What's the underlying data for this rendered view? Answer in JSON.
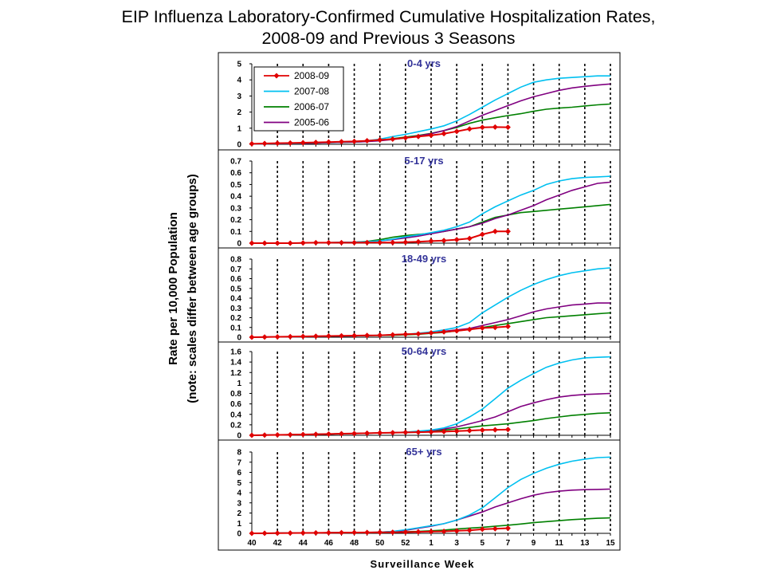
{
  "title_line1": "EIP Influenza Laboratory-Confirmed Cumulative Hospitalization Rates,",
  "title_line2": "2008-09 and Previous 3 Seasons",
  "colors": {
    "2008-09": "#e00000",
    "2007-08": "#00c0f0",
    "2006-07": "#008000",
    "2005-06": "#800080"
  },
  "chart_data": {
    "type": "line",
    "title": "EIP Influenza Laboratory-Confirmed Cumulative Hospitalization Rates, 2008-09 and Previous 3 Seasons",
    "xlabel": "Surveillance Week",
    "ylabel_line1": "Rate per 10,000 Population",
    "ylabel_line2": "(note: scales differ between age groups)",
    "legend_position": "top-left",
    "weeks": [
      40,
      41,
      42,
      43,
      44,
      45,
      46,
      47,
      48,
      49,
      50,
      51,
      52,
      1,
      2,
      3,
      4,
      5,
      6,
      7,
      8,
      9,
      10,
      11,
      12,
      13,
      14,
      15,
      16
    ],
    "x_tick_labels": [
      "40",
      "42",
      "44",
      "46",
      "48",
      "50",
      "52",
      "1",
      "3",
      "5",
      "7",
      "9",
      "11",
      "13",
      "15"
    ],
    "gridlines": "vertical dashed",
    "legend": [
      "2008-09",
      "2007-08",
      "2006-07",
      "2005-06"
    ],
    "panels": [
      {
        "label": "0-4 yrs",
        "ylim": [
          0,
          5
        ],
        "yticks": [
          "0",
          "1",
          "2",
          "3",
          "4",
          "5"
        ],
        "series": [
          {
            "name": "2008-09",
            "values": [
              0.03,
              0.05,
              0.07,
              0.08,
              0.1,
              0.12,
              0.14,
              0.16,
              0.18,
              0.22,
              0.27,
              0.32,
              0.4,
              0.48,
              0.56,
              0.66,
              0.8,
              0.95,
              1.05,
              1.07,
              1.06
            ]
          },
          {
            "name": "2007-08",
            "values": [
              0.02,
              0.03,
              0.05,
              0.06,
              0.08,
              0.1,
              0.12,
              0.14,
              0.17,
              0.22,
              0.32,
              0.48,
              0.62,
              0.78,
              0.95,
              1.15,
              1.45,
              1.85,
              2.3,
              2.75,
              3.15,
              3.55,
              3.85,
              4.0,
              4.1,
              4.15,
              4.2,
              4.25,
              4.25
            ]
          },
          {
            "name": "2006-07",
            "values": [
              0.02,
              0.03,
              0.04,
              0.05,
              0.06,
              0.08,
              0.1,
              0.12,
              0.14,
              0.18,
              0.25,
              0.35,
              0.45,
              0.55,
              0.68,
              0.85,
              1.05,
              1.3,
              1.5,
              1.65,
              1.78,
              1.9,
              2.05,
              2.18,
              2.25,
              2.3,
              2.38,
              2.45,
              2.5
            ]
          },
          {
            "name": "2005-06",
            "values": [
              0.02,
              0.03,
              0.04,
              0.05,
              0.06,
              0.08,
              0.1,
              0.12,
              0.14,
              0.17,
              0.22,
              0.3,
              0.4,
              0.52,
              0.66,
              0.85,
              1.1,
              1.45,
              1.8,
              2.1,
              2.4,
              2.7,
              2.95,
              3.15,
              3.35,
              3.5,
              3.6,
              3.68,
              3.75
            ]
          }
        ]
      },
      {
        "label": "5-17 yrs",
        "ylim": [
          0,
          0.7
        ],
        "yticks": [
          "0",
          "0.1",
          "0.2",
          "0.3",
          "0.4",
          "0.5",
          "0.6",
          "0.7"
        ],
        "series": [
          {
            "name": "2008-09",
            "values": [
              0.0,
              0.0,
              0.0,
              0.0,
              0.002,
              0.004,
              0.004,
              0.004,
              0.004,
              0.005,
              0.005,
              0.005,
              0.008,
              0.012,
              0.018,
              0.022,
              0.03,
              0.04,
              0.075,
              0.1,
              0.1
            ]
          },
          {
            "name": "2007-08",
            "values": [
              0.0,
              0.0,
              0.0,
              0.0,
              0.002,
              0.004,
              0.005,
              0.006,
              0.008,
              0.012,
              0.02,
              0.035,
              0.055,
              0.07,
              0.09,
              0.11,
              0.14,
              0.18,
              0.25,
              0.31,
              0.36,
              0.41,
              0.45,
              0.5,
              0.53,
              0.55,
              0.56,
              0.565,
              0.57
            ]
          },
          {
            "name": "2006-07",
            "values": [
              0.0,
              0.0,
              0.0,
              0.0,
              0.002,
              0.004,
              0.005,
              0.006,
              0.008,
              0.015,
              0.03,
              0.05,
              0.065,
              0.075,
              0.085,
              0.1,
              0.12,
              0.14,
              0.18,
              0.22,
              0.24,
              0.26,
              0.27,
              0.28,
              0.29,
              0.3,
              0.31,
              0.32,
              0.33
            ]
          },
          {
            "name": "2005-06",
            "values": [
              0.0,
              0.0,
              0.0,
              0.0,
              0.002,
              0.004,
              0.005,
              0.006,
              0.008,
              0.012,
              0.02,
              0.03,
              0.045,
              0.06,
              0.08,
              0.1,
              0.12,
              0.14,
              0.17,
              0.21,
              0.24,
              0.28,
              0.32,
              0.37,
              0.41,
              0.45,
              0.48,
              0.51,
              0.52
            ]
          }
        ]
      },
      {
        "label": "18-49 yrs",
        "ylim": [
          0,
          0.8
        ],
        "yticks": [
          "0",
          "0.1",
          "0.2",
          "0.3",
          "0.4",
          "0.5",
          "0.6",
          "0.7",
          "0.8"
        ],
        "series": [
          {
            "name": "2008-09",
            "values": [
              0.0,
              0.002,
              0.004,
              0.006,
              0.008,
              0.01,
              0.012,
              0.014,
              0.016,
              0.018,
              0.02,
              0.025,
              0.03,
              0.035,
              0.045,
              0.055,
              0.065,
              0.08,
              0.095,
              0.1,
              0.11
            ]
          },
          {
            "name": "2007-08",
            "values": [
              0.0,
              0.002,
              0.004,
              0.005,
              0.006,
              0.008,
              0.01,
              0.012,
              0.014,
              0.016,
              0.02,
              0.025,
              0.03,
              0.04,
              0.055,
              0.075,
              0.1,
              0.15,
              0.25,
              0.33,
              0.41,
              0.48,
              0.54,
              0.59,
              0.63,
              0.66,
              0.68,
              0.7,
              0.71
            ]
          },
          {
            "name": "2006-07",
            "values": [
              0.0,
              0.002,
              0.004,
              0.005,
              0.006,
              0.008,
              0.01,
              0.012,
              0.014,
              0.016,
              0.018,
              0.02,
              0.025,
              0.03,
              0.04,
              0.05,
              0.065,
              0.08,
              0.1,
              0.12,
              0.14,
              0.16,
              0.18,
              0.2,
              0.21,
              0.22,
              0.23,
              0.24,
              0.25
            ]
          },
          {
            "name": "2005-06",
            "values": [
              0.0,
              0.002,
              0.004,
              0.005,
              0.006,
              0.008,
              0.01,
              0.012,
              0.014,
              0.016,
              0.02,
              0.025,
              0.03,
              0.035,
              0.045,
              0.06,
              0.075,
              0.09,
              0.12,
              0.15,
              0.18,
              0.22,
              0.26,
              0.29,
              0.31,
              0.33,
              0.34,
              0.35,
              0.35
            ]
          }
        ]
      },
      {
        "label": "50-64 yrs",
        "ylim": [
          0,
          1.6
        ],
        "yticks": [
          "0",
          "0.2",
          "0.4",
          "0.6",
          "0.8",
          "1",
          "1.2",
          "1.4",
          "1.6"
        ],
        "series": [
          {
            "name": "2008-09",
            "values": [
              0.0,
              0.004,
              0.008,
              0.012,
              0.016,
              0.02,
              0.025,
              0.03,
              0.035,
              0.04,
              0.045,
              0.05,
              0.055,
              0.06,
              0.065,
              0.07,
              0.08,
              0.09,
              0.1,
              0.105,
              0.11
            ]
          },
          {
            "name": "2007-08",
            "values": [
              0.0,
              0.004,
              0.008,
              0.012,
              0.016,
              0.02,
              0.025,
              0.03,
              0.035,
              0.04,
              0.045,
              0.05,
              0.06,
              0.08,
              0.1,
              0.14,
              0.22,
              0.35,
              0.5,
              0.7,
              0.9,
              1.05,
              1.18,
              1.3,
              1.38,
              1.44,
              1.48,
              1.49,
              1.5
            ]
          },
          {
            "name": "2006-07",
            "values": [
              0.0,
              0.004,
              0.008,
              0.012,
              0.016,
              0.02,
              0.025,
              0.03,
              0.035,
              0.04,
              0.045,
              0.05,
              0.055,
              0.06,
              0.08,
              0.1,
              0.12,
              0.15,
              0.18,
              0.2,
              0.22,
              0.25,
              0.28,
              0.32,
              0.35,
              0.38,
              0.4,
              0.42,
              0.43
            ]
          },
          {
            "name": "2005-06",
            "values": [
              0.0,
              0.004,
              0.008,
              0.012,
              0.016,
              0.02,
              0.025,
              0.03,
              0.035,
              0.04,
              0.045,
              0.05,
              0.06,
              0.07,
              0.09,
              0.12,
              0.16,
              0.22,
              0.28,
              0.35,
              0.45,
              0.55,
              0.62,
              0.68,
              0.73,
              0.76,
              0.78,
              0.79,
              0.8
            ]
          }
        ]
      },
      {
        "label": "65+ yrs",
        "ylim": [
          0,
          8
        ],
        "yticks": [
          "0",
          "1",
          "2",
          "3",
          "4",
          "5",
          "6",
          "7",
          "8"
        ],
        "series": [
          {
            "name": "2008-09",
            "values": [
              0.0,
              0.01,
              0.02,
              0.03,
              0.04,
              0.05,
              0.06,
              0.07,
              0.08,
              0.09,
              0.1,
              0.11,
              0.12,
              0.15,
              0.18,
              0.2,
              0.25,
              0.3,
              0.4,
              0.45,
              0.5
            ]
          },
          {
            "name": "2007-08",
            "values": [
              0.0,
              0.01,
              0.02,
              0.03,
              0.04,
              0.05,
              0.06,
              0.07,
              0.08,
              0.09,
              0.12,
              0.2,
              0.35,
              0.55,
              0.75,
              0.95,
              1.3,
              1.8,
              2.5,
              3.5,
              4.5,
              5.3,
              5.9,
              6.4,
              6.8,
              7.1,
              7.3,
              7.45,
              7.5
            ]
          },
          {
            "name": "2006-07",
            "values": [
              0.0,
              0.01,
              0.02,
              0.03,
              0.04,
              0.05,
              0.06,
              0.07,
              0.08,
              0.09,
              0.1,
              0.12,
              0.15,
              0.2,
              0.25,
              0.32,
              0.42,
              0.52,
              0.6,
              0.7,
              0.8,
              0.92,
              1.05,
              1.15,
              1.25,
              1.35,
              1.42,
              1.48,
              1.52
            ]
          },
          {
            "name": "2005-06",
            "values": [
              0.0,
              0.01,
              0.02,
              0.03,
              0.04,
              0.05,
              0.06,
              0.07,
              0.08,
              0.09,
              0.12,
              0.18,
              0.3,
              0.5,
              0.7,
              0.95,
              1.3,
              1.7,
              2.1,
              2.6,
              3.0,
              3.4,
              3.75,
              4.0,
              4.15,
              4.25,
              4.3,
              4.32,
              4.35
            ]
          }
        ]
      }
    ]
  }
}
